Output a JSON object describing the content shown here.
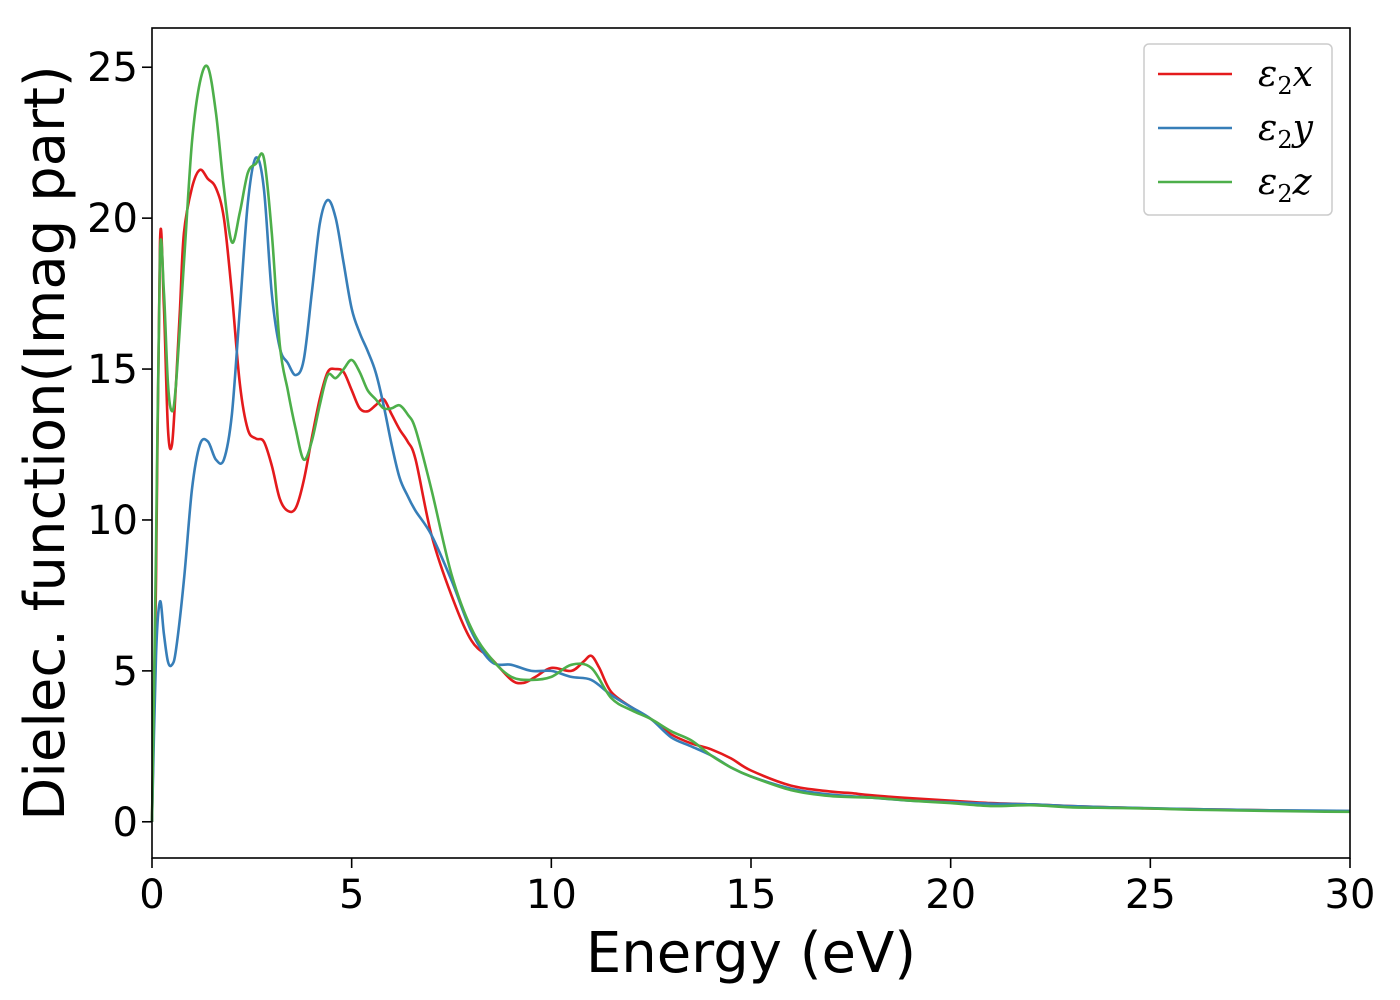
{
  "chart_data": {
    "type": "line",
    "xlabel": "Energy (eV)",
    "ylabel": "Dielec. function(Imag part)",
    "xlim": [
      0,
      30
    ],
    "ylim": [
      -1.2,
      26.3
    ],
    "xticks": [
      0,
      5,
      10,
      15,
      20,
      25,
      30
    ],
    "yticks": [
      0,
      5,
      10,
      15,
      20,
      25
    ],
    "grid": false,
    "legend_position": "top-right",
    "series": [
      {
        "name": "ε2x",
        "legend": {
          "base": "ε",
          "sub": "2",
          "var": "x"
        },
        "color": "#e41a1c",
        "x": [
          0,
          0.1,
          0.2,
          0.3,
          0.4,
          0.5,
          0.6,
          0.7,
          0.8,
          1.0,
          1.2,
          1.4,
          1.6,
          1.8,
          2.0,
          2.2,
          2.4,
          2.6,
          2.8,
          3.0,
          3.2,
          3.4,
          3.6,
          3.8,
          4.0,
          4.2,
          4.4,
          4.6,
          4.8,
          5.0,
          5.2,
          5.4,
          5.6,
          5.8,
          6.0,
          6.2,
          6.4,
          6.6,
          7.0,
          7.5,
          8.0,
          8.5,
          9.0,
          9.3,
          9.6,
          10.0,
          10.5,
          10.8,
          11.0,
          11.2,
          11.5,
          12.0,
          12.5,
          13.0,
          13.5,
          14.0,
          14.5,
          15.0,
          16.0,
          17.0,
          17.5,
          18.0,
          19.0,
          20.0,
          21.0,
          22.0,
          23.0,
          24.0,
          25.0,
          26.0,
          27.0,
          28.0,
          29.0,
          30.0
        ],
        "values": [
          0,
          8.0,
          19.2,
          17.0,
          13.0,
          12.5,
          14.5,
          17.0,
          19.5,
          21.0,
          21.6,
          21.3,
          21.0,
          20.0,
          17.5,
          14.5,
          13.0,
          12.7,
          12.6,
          11.8,
          10.7,
          10.3,
          10.4,
          11.3,
          12.7,
          14.0,
          14.9,
          15.0,
          14.9,
          14.3,
          13.7,
          13.6,
          13.8,
          14.0,
          13.5,
          13.0,
          12.6,
          12.0,
          9.5,
          7.5,
          6.0,
          5.4,
          4.7,
          4.6,
          4.8,
          5.1,
          5.0,
          5.3,
          5.5,
          5.1,
          4.3,
          3.8,
          3.4,
          2.9,
          2.6,
          2.4,
          2.1,
          1.7,
          1.2,
          1.0,
          0.95,
          0.88,
          0.78,
          0.7,
          0.62,
          0.58,
          0.52,
          0.48,
          0.44,
          0.42,
          0.4,
          0.38,
          0.36,
          0.35
        ]
      },
      {
        "name": "ε2y",
        "legend": {
          "base": "ε",
          "sub": "2",
          "var": "y"
        },
        "color": "#377eb8",
        "x": [
          0,
          0.1,
          0.2,
          0.3,
          0.4,
          0.5,
          0.6,
          0.8,
          1.0,
          1.2,
          1.4,
          1.6,
          1.8,
          2.0,
          2.2,
          2.4,
          2.6,
          2.8,
          3.0,
          3.2,
          3.4,
          3.6,
          3.8,
          4.0,
          4.2,
          4.4,
          4.6,
          4.8,
          5.0,
          5.2,
          5.4,
          5.6,
          5.8,
          6.0,
          6.2,
          6.4,
          6.6,
          7.0,
          7.5,
          8.0,
          8.5,
          9.0,
          9.5,
          10.0,
          10.5,
          11.0,
          11.5,
          12.0,
          12.5,
          13.0,
          13.5,
          14.0,
          14.5,
          15.0,
          16.0,
          17.0,
          18.0,
          19.0,
          20.0,
          21.0,
          22.0,
          23.0,
          24.0,
          25.0,
          26.0,
          27.0,
          28.0,
          29.0,
          30.0
        ],
        "values": [
          0,
          5.5,
          7.3,
          6.2,
          5.3,
          5.2,
          5.7,
          8.0,
          11.0,
          12.5,
          12.6,
          12.0,
          12.0,
          13.5,
          17.0,
          20.5,
          22.0,
          21.0,
          17.5,
          15.7,
          15.2,
          14.8,
          15.3,
          17.5,
          19.8,
          20.6,
          20.0,
          18.5,
          17.0,
          16.2,
          15.6,
          14.9,
          13.8,
          12.5,
          11.4,
          10.8,
          10.3,
          9.5,
          8.0,
          6.3,
          5.3,
          5.2,
          5.0,
          5.0,
          4.8,
          4.7,
          4.2,
          3.8,
          3.4,
          2.8,
          2.5,
          2.2,
          1.8,
          1.5,
          1.1,
          0.9,
          0.8,
          0.7,
          0.65,
          0.6,
          0.58,
          0.52,
          0.48,
          0.45,
          0.42,
          0.4,
          0.38,
          0.37,
          0.36
        ]
      },
      {
        "name": "ε2z",
        "legend": {
          "base": "ε",
          "sub": "2",
          "var": "z"
        },
        "color": "#4daf4a",
        "x": [
          0,
          0.1,
          0.2,
          0.3,
          0.4,
          0.5,
          0.6,
          0.8,
          1.0,
          1.2,
          1.4,
          1.6,
          1.8,
          2.0,
          2.2,
          2.4,
          2.6,
          2.8,
          3.0,
          3.2,
          3.4,
          3.6,
          3.8,
          4.0,
          4.2,
          4.4,
          4.6,
          4.8,
          5.0,
          5.2,
          5.4,
          5.6,
          5.8,
          6.0,
          6.2,
          6.4,
          6.6,
          7.0,
          7.5,
          8.0,
          8.5,
          9.0,
          9.5,
          10.0,
          10.5,
          11.0,
          11.5,
          12.0,
          12.5,
          13.0,
          13.5,
          14.0,
          14.5,
          15.0,
          16.0,
          17.0,
          18.0,
          19.0,
          20.0,
          21.0,
          22.0,
          23.0,
          24.0,
          25.0,
          26.0,
          27.0,
          28.0,
          29.0,
          30.0
        ],
        "values": [
          0,
          9.0,
          18.8,
          17.5,
          14.5,
          13.6,
          14.5,
          18.5,
          22.5,
          24.5,
          25.0,
          23.5,
          21.0,
          19.2,
          20.2,
          21.5,
          21.8,
          22.0,
          19.5,
          15.8,
          14.3,
          13.0,
          12.0,
          12.6,
          13.8,
          14.8,
          14.7,
          15.0,
          15.3,
          14.9,
          14.3,
          14.0,
          13.7,
          13.7,
          13.8,
          13.5,
          13.0,
          11.0,
          8.2,
          6.4,
          5.4,
          4.8,
          4.7,
          4.8,
          5.2,
          5.1,
          4.1,
          3.7,
          3.4,
          3.0,
          2.7,
          2.2,
          1.8,
          1.5,
          1.05,
          0.85,
          0.8,
          0.7,
          0.62,
          0.52,
          0.55,
          0.48,
          0.46,
          0.44,
          0.4,
          0.38,
          0.36,
          0.34,
          0.33
        ]
      }
    ]
  }
}
